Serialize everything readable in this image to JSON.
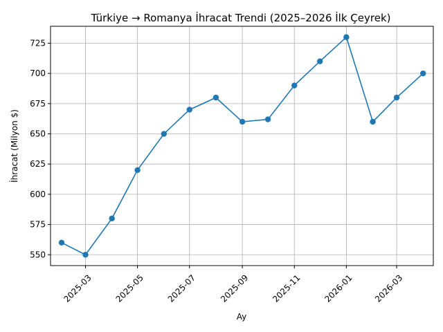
{
  "chart_data": {
    "type": "line",
    "title": "Türkiye → Romanya İhracat Trendi (2025–2026 İlk Çeyrek)",
    "xlabel": "Ay",
    "ylabel": "İhracat (Milyon $)",
    "x": [
      "2025-02",
      "2025-03",
      "2025-04",
      "2025-05",
      "2025-06",
      "2025-07",
      "2025-08",
      "2025-09",
      "2025-10",
      "2025-11",
      "2025-12",
      "2026-01",
      "2026-02",
      "2026-03",
      "2026-04"
    ],
    "series": [
      {
        "values": [
          560,
          550,
          580,
          620,
          650,
          670,
          680,
          660,
          662,
          690,
          710,
          730,
          660,
          680,
          700
        ],
        "color": "#1f77b4"
      }
    ],
    "xticks": [
      "2025-03",
      "2025-05",
      "2025-07",
      "2025-09",
      "2025-11",
      "2026-01",
      "2026-03"
    ],
    "yticks": [
      550,
      575,
      600,
      625,
      650,
      675,
      700,
      725
    ],
    "xlim": [
      "2025-01-19",
      "2026-04-13"
    ],
    "ylim": [
      541,
      739
    ],
    "grid": true,
    "marker": "circle"
  }
}
